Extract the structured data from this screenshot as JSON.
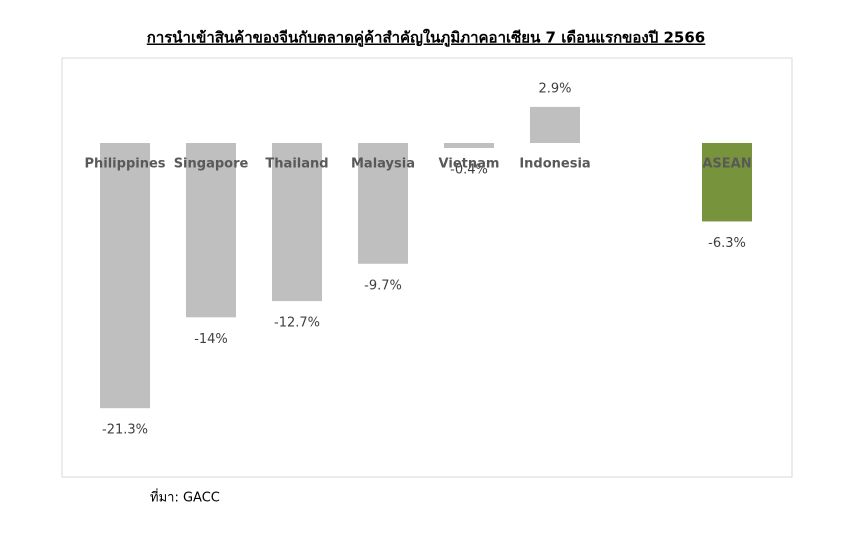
{
  "chart_data": {
    "type": "bar",
    "title": "การนำเข้าสินค้าของจีนกับตลาดคู่ค้าสำคัญในภูมิภาคอาเซียน 7 เดือนแรกของปี 2566",
    "categories": [
      "Philippines",
      "Singapore",
      "Thailand",
      "Malaysia",
      "Vietnam",
      "Indonesia",
      null,
      "ASEAN"
    ],
    "values": [
      -21.3,
      -14,
      -12.7,
      -9.7,
      -0.4,
      2.9,
      null,
      -6.3
    ],
    "value_labels": [
      "-21.3%",
      "-14%",
      "-12.7%",
      "-9.7%",
      "-0.4%",
      "2.9%",
      null,
      "-6.3%"
    ],
    "colors": [
      "#bfbfbf",
      "#bfbfbf",
      "#bfbfbf",
      "#bfbfbf",
      "#bfbfbf",
      "#bfbfbf",
      null,
      "#77933c"
    ],
    "source": "ที่มา: GACC"
  }
}
